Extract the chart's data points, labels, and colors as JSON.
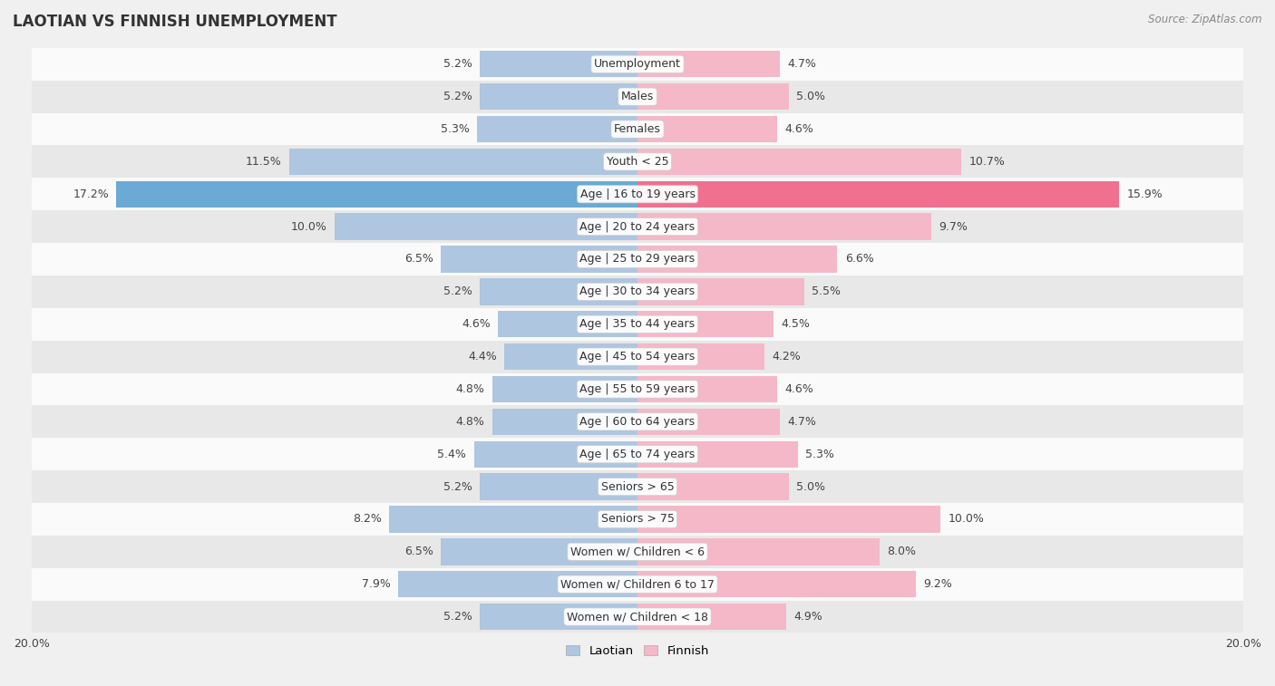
{
  "title": "LAOTIAN VS FINNISH UNEMPLOYMENT",
  "source": "Source: ZipAtlas.com",
  "categories": [
    "Unemployment",
    "Males",
    "Females",
    "Youth < 25",
    "Age | 16 to 19 years",
    "Age | 20 to 24 years",
    "Age | 25 to 29 years",
    "Age | 30 to 34 years",
    "Age | 35 to 44 years",
    "Age | 45 to 54 years",
    "Age | 55 to 59 years",
    "Age | 60 to 64 years",
    "Age | 65 to 74 years",
    "Seniors > 65",
    "Seniors > 75",
    "Women w/ Children < 6",
    "Women w/ Children 6 to 17",
    "Women w/ Children < 18"
  ],
  "laotian": [
    5.2,
    5.2,
    5.3,
    11.5,
    17.2,
    10.0,
    6.5,
    5.2,
    4.6,
    4.4,
    4.8,
    4.8,
    5.4,
    5.2,
    8.2,
    6.5,
    7.9,
    5.2
  ],
  "finnish": [
    4.7,
    5.0,
    4.6,
    10.7,
    15.9,
    9.7,
    6.6,
    5.5,
    4.5,
    4.2,
    4.6,
    4.7,
    5.3,
    5.0,
    10.0,
    8.0,
    9.2,
    4.9
  ],
  "laotian_color": "#aec6e0",
  "finnish_color": "#f5b8c8",
  "laotian_color_highlight": "#6aaad4",
  "finnish_color_highlight": "#f07090",
  "axis_max": 20.0,
  "bg_color": "#f0f0f0",
  "row_bg_light": "#fafafa",
  "row_bg_dark": "#e8e8e8",
  "label_fontsize": 9.0,
  "value_fontsize": 9.0,
  "title_fontsize": 12,
  "source_fontsize": 8.5,
  "legend_fontsize": 9.5
}
